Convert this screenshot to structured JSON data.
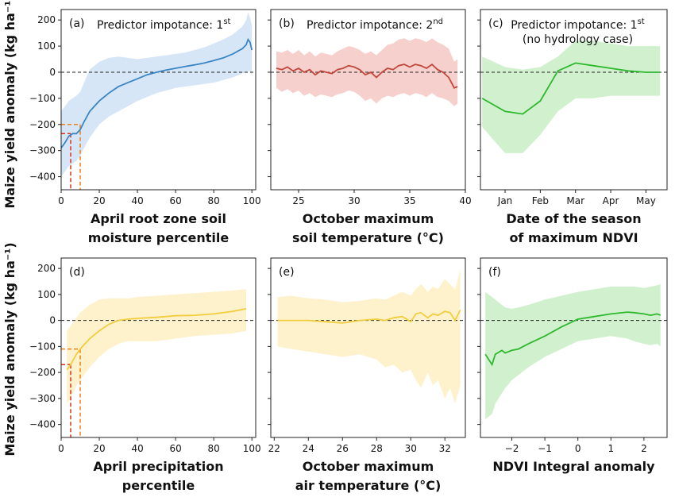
{
  "y_axis_label": "Maize yield anomaly (kg ha⁻¹)",
  "colors": {
    "blue": "#3a86c4",
    "blue_fill": "#cfe2f5",
    "red": "#c1473c",
    "red_fill": "#f5c8c4",
    "green": "#2eb82e",
    "green_fill": "#c9efc6",
    "yellow": "#f2cd3e",
    "yellow_fill": "#fdf0c2",
    "ref_red": "#e0301e",
    "ref_orange": "#f07f1e"
  },
  "chart_data": [
    {
      "type": "line",
      "panel": "(a)",
      "annotation": "Predictor impotance: 1",
      "annotation_sup": "st",
      "annotation_line2": "",
      "xlabel_line1": "April root zone soil",
      "xlabel_line2": "moisture percentile",
      "xticks": [
        "0",
        "20",
        "40",
        "60",
        "80",
        "100"
      ],
      "xtick_values": [
        0,
        20,
        40,
        60,
        80,
        100
      ],
      "xlim": [
        0,
        102
      ],
      "yticks": [
        "200",
        "100",
        "0",
        "−100",
        "−200",
        "−300",
        "−400"
      ],
      "ytick_values": [
        200,
        100,
        0,
        -100,
        -200,
        -300,
        -400
      ],
      "ylim": [
        -450,
        240
      ],
      "color": "blue",
      "x": [
        0,
        2,
        4,
        6,
        8,
        10,
        12,
        15,
        20,
        25,
        30,
        35,
        40,
        45,
        50,
        55,
        60,
        65,
        70,
        75,
        80,
        85,
        90,
        95,
        97,
        98,
        99,
        100
      ],
      "y": [
        -290,
        -270,
        -245,
        -235,
        -235,
        -220,
        -190,
        -150,
        -110,
        -80,
        -55,
        -40,
        -25,
        -10,
        0,
        8,
        15,
        22,
        28,
        35,
        45,
        55,
        70,
        90,
        105,
        125,
        115,
        85
      ],
      "y_low": [
        -400,
        -380,
        -360,
        -350,
        -340,
        -320,
        -290,
        -250,
        -200,
        -170,
        -150,
        -130,
        -110,
        -95,
        -80,
        -70,
        -60,
        -55,
        -50,
        -45,
        -40,
        -30,
        -20,
        -5,
        0,
        5,
        0,
        -10
      ],
      "y_high": [
        -150,
        -130,
        -110,
        -100,
        -90,
        -75,
        -40,
        10,
        40,
        55,
        60,
        55,
        50,
        55,
        60,
        65,
        70,
        75,
        85,
        95,
        110,
        125,
        145,
        175,
        200,
        230,
        210,
        180
      ],
      "refs": [
        {
          "x": 5,
          "y": -235,
          "color": "ref_red"
        },
        {
          "x": 10,
          "y": -200,
          "color": "ref_orange"
        }
      ]
    },
    {
      "type": "line",
      "panel": "(b)",
      "annotation": "Predictor impotance: 2",
      "annotation_sup": "nd",
      "annotation_line2": "",
      "xlabel_line1": "October maximum",
      "xlabel_line2": "soil temperature (°C)",
      "xticks": [
        "25",
        "30",
        "35",
        "40"
      ],
      "xtick_values": [
        25,
        30,
        35,
        40
      ],
      "xlim": [
        22.5,
        40
      ],
      "yticks": [],
      "ytick_values": [
        200,
        100,
        0,
        -100,
        -200,
        -300,
        -400
      ],
      "ylim": [
        -450,
        240
      ],
      "color": "red",
      "x": [
        23,
        23.5,
        24,
        24.5,
        25,
        25.5,
        26,
        26.5,
        27,
        27.5,
        28,
        28.5,
        29,
        29.5,
        30,
        30.5,
        31,
        31.5,
        32,
        32.5,
        33,
        33.5,
        34,
        34.5,
        35,
        35.5,
        36,
        36.5,
        37,
        37.5,
        38,
        38.5,
        39,
        39.3
      ],
      "y": [
        15,
        10,
        20,
        5,
        15,
        0,
        10,
        -10,
        5,
        0,
        -5,
        10,
        15,
        25,
        20,
        10,
        -10,
        0,
        -20,
        0,
        15,
        10,
        25,
        30,
        20,
        30,
        25,
        15,
        30,
        10,
        0,
        -20,
        -60,
        -55
      ],
      "y_low": [
        -60,
        -75,
        -65,
        -80,
        -70,
        -90,
        -80,
        -95,
        -85,
        -90,
        -95,
        -85,
        -80,
        -70,
        -75,
        -90,
        -110,
        -100,
        -120,
        -100,
        -90,
        -95,
        -85,
        -80,
        -90,
        -80,
        -85,
        -95,
        -80,
        -95,
        -100,
        -110,
        -130,
        -120
      ],
      "y_high": [
        80,
        75,
        85,
        70,
        85,
        65,
        80,
        60,
        75,
        70,
        65,
        80,
        90,
        100,
        95,
        85,
        70,
        80,
        65,
        85,
        105,
        110,
        125,
        130,
        120,
        130,
        125,
        115,
        130,
        115,
        105,
        90,
        40,
        50
      ],
      "refs": []
    },
    {
      "type": "line",
      "panel": "(c)",
      "annotation": "Predictor impotance: 1",
      "annotation_sup": "st",
      "annotation_line2": "(no hydrology case)",
      "xlabel_line1": "Date of the season",
      "xlabel_line2": "of maximum NDVI",
      "xticks": [
        "Jan",
        "Feb",
        "Mar",
        "Apr",
        "May"
      ],
      "xtick_values": [
        1,
        2,
        3,
        4,
        5
      ],
      "xlim": [
        0.3,
        5.6
      ],
      "yticks": [],
      "ytick_values": [
        200,
        100,
        0,
        -100,
        -200,
        -300,
        -400
      ],
      "ylim": [
        -450,
        240
      ],
      "color": "green",
      "x": [
        0.35,
        1.0,
        1.5,
        2.0,
        2.5,
        3.0,
        3.5,
        4.0,
        4.5,
        5.0,
        5.4
      ],
      "y": [
        -100,
        -150,
        -160,
        -110,
        5,
        35,
        25,
        15,
        5,
        0,
        0
      ],
      "y_low": [
        -210,
        -310,
        -310,
        -240,
        -150,
        -100,
        -100,
        -90,
        -90,
        -90,
        -90
      ],
      "y_high": [
        60,
        20,
        10,
        20,
        60,
        120,
        120,
        110,
        100,
        100,
        100
      ],
      "refs": []
    },
    {
      "type": "line",
      "panel": "(d)",
      "annotation": "",
      "annotation_sup": "",
      "annotation_line2": "",
      "xlabel_line1": "April precipitation",
      "xlabel_line2": "percentile",
      "xticks": [
        "0",
        "20",
        "40",
        "60",
        "80",
        "100"
      ],
      "xtick_values": [
        0,
        20,
        40,
        60,
        80,
        100
      ],
      "xlim": [
        0,
        102
      ],
      "yticks": [
        "200",
        "100",
        "0",
        "−100",
        "−200",
        "−300",
        "−400"
      ],
      "ytick_values": [
        200,
        100,
        0,
        -100,
        -200,
        -300,
        -400
      ],
      "ylim": [
        -450,
        240
      ],
      "color": "yellow",
      "x": [
        3,
        5,
        8,
        10,
        15,
        20,
        25,
        30,
        35,
        40,
        50,
        60,
        70,
        80,
        90,
        97
      ],
      "y": [
        -190,
        -170,
        -130,
        -110,
        -70,
        -40,
        -15,
        0,
        5,
        8,
        12,
        18,
        20,
        25,
        35,
        45
      ],
      "y_low": [
        -320,
        -300,
        -250,
        -230,
        -180,
        -140,
        -110,
        -90,
        -80,
        -80,
        -80,
        -70,
        -60,
        -55,
        -50,
        -40
      ],
      "y_high": [
        -40,
        -20,
        10,
        30,
        60,
        80,
        85,
        85,
        85,
        90,
        95,
        100,
        105,
        110,
        115,
        120
      ],
      "refs": [
        {
          "x": 5,
          "y": -170,
          "color": "ref_red"
        },
        {
          "x": 10,
          "y": -110,
          "color": "ref_orange"
        }
      ]
    },
    {
      "type": "line",
      "panel": "(e)",
      "annotation": "",
      "annotation_sup": "",
      "annotation_line2": "",
      "xlabel_line1": "October maximum",
      "xlabel_line2": "air temperature (°C)",
      "xticks": [
        "22",
        "24",
        "26",
        "28",
        "30",
        "32"
      ],
      "xtick_values": [
        22,
        24,
        26,
        28,
        30,
        32
      ],
      "xlim": [
        21.8,
        33.2
      ],
      "yticks": [],
      "ytick_values": [
        200,
        100,
        0,
        -100,
        -200,
        -300,
        -400
      ],
      "ylim": [
        -450,
        240
      ],
      "color": "yellow",
      "x": [
        22.2,
        23,
        24,
        25,
        26,
        27,
        28,
        28.5,
        29,
        29.5,
        30,
        30.3,
        30.6,
        31,
        31.3,
        31.6,
        32,
        32.3,
        32.6,
        32.9
      ],
      "y": [
        0,
        0,
        0,
        -5,
        -10,
        0,
        5,
        0,
        10,
        15,
        -5,
        25,
        30,
        10,
        25,
        20,
        35,
        30,
        0,
        40
      ],
      "y_low": [
        -100,
        -110,
        -120,
        -130,
        -140,
        -130,
        -150,
        -180,
        -170,
        -200,
        -190,
        -230,
        -260,
        -200,
        -250,
        -230,
        -300,
        -260,
        -320,
        -250
      ],
      "y_high": [
        90,
        95,
        85,
        80,
        70,
        75,
        85,
        80,
        95,
        110,
        95,
        120,
        140,
        110,
        130,
        120,
        160,
        140,
        120,
        195
      ],
      "refs": []
    },
    {
      "type": "line",
      "panel": "(f)",
      "annotation": "",
      "annotation_sup": "",
      "annotation_line2": "",
      "xlabel_line1": "NDVI Integral anomaly",
      "xlabel_line2": "",
      "xticks": [
        "−2",
        "−1",
        "0",
        "1",
        "2"
      ],
      "xtick_values": [
        -2,
        -1,
        0,
        1,
        2
      ],
      "xlim": [
        -2.95,
        2.7
      ],
      "yticks": [],
      "ytick_values": [
        200,
        100,
        0,
        -100,
        -200,
        -300,
        -400
      ],
      "ylim": [
        -450,
        240
      ],
      "color": "green",
      "x": [
        -2.8,
        -2.6,
        -2.5,
        -2.3,
        -2.2,
        -2.0,
        -1.8,
        -1.5,
        -1.0,
        -0.5,
        0,
        0.5,
        1.0,
        1.5,
        1.7,
        2.0,
        2.2,
        2.4,
        2.5
      ],
      "y": [
        -130,
        -170,
        -130,
        -115,
        -125,
        -115,
        -110,
        -90,
        -60,
        -25,
        5,
        15,
        25,
        32,
        30,
        25,
        20,
        25,
        20
      ],
      "y_low": [
        -380,
        -360,
        -320,
        -280,
        -260,
        -230,
        -210,
        -180,
        -140,
        -110,
        -80,
        -70,
        -60,
        -70,
        -80,
        -90,
        -95,
        -90,
        -100
      ],
      "y_high": [
        110,
        90,
        80,
        60,
        50,
        45,
        50,
        60,
        80,
        95,
        110,
        120,
        130,
        130,
        130,
        125,
        130,
        135,
        140
      ],
      "refs": []
    }
  ]
}
